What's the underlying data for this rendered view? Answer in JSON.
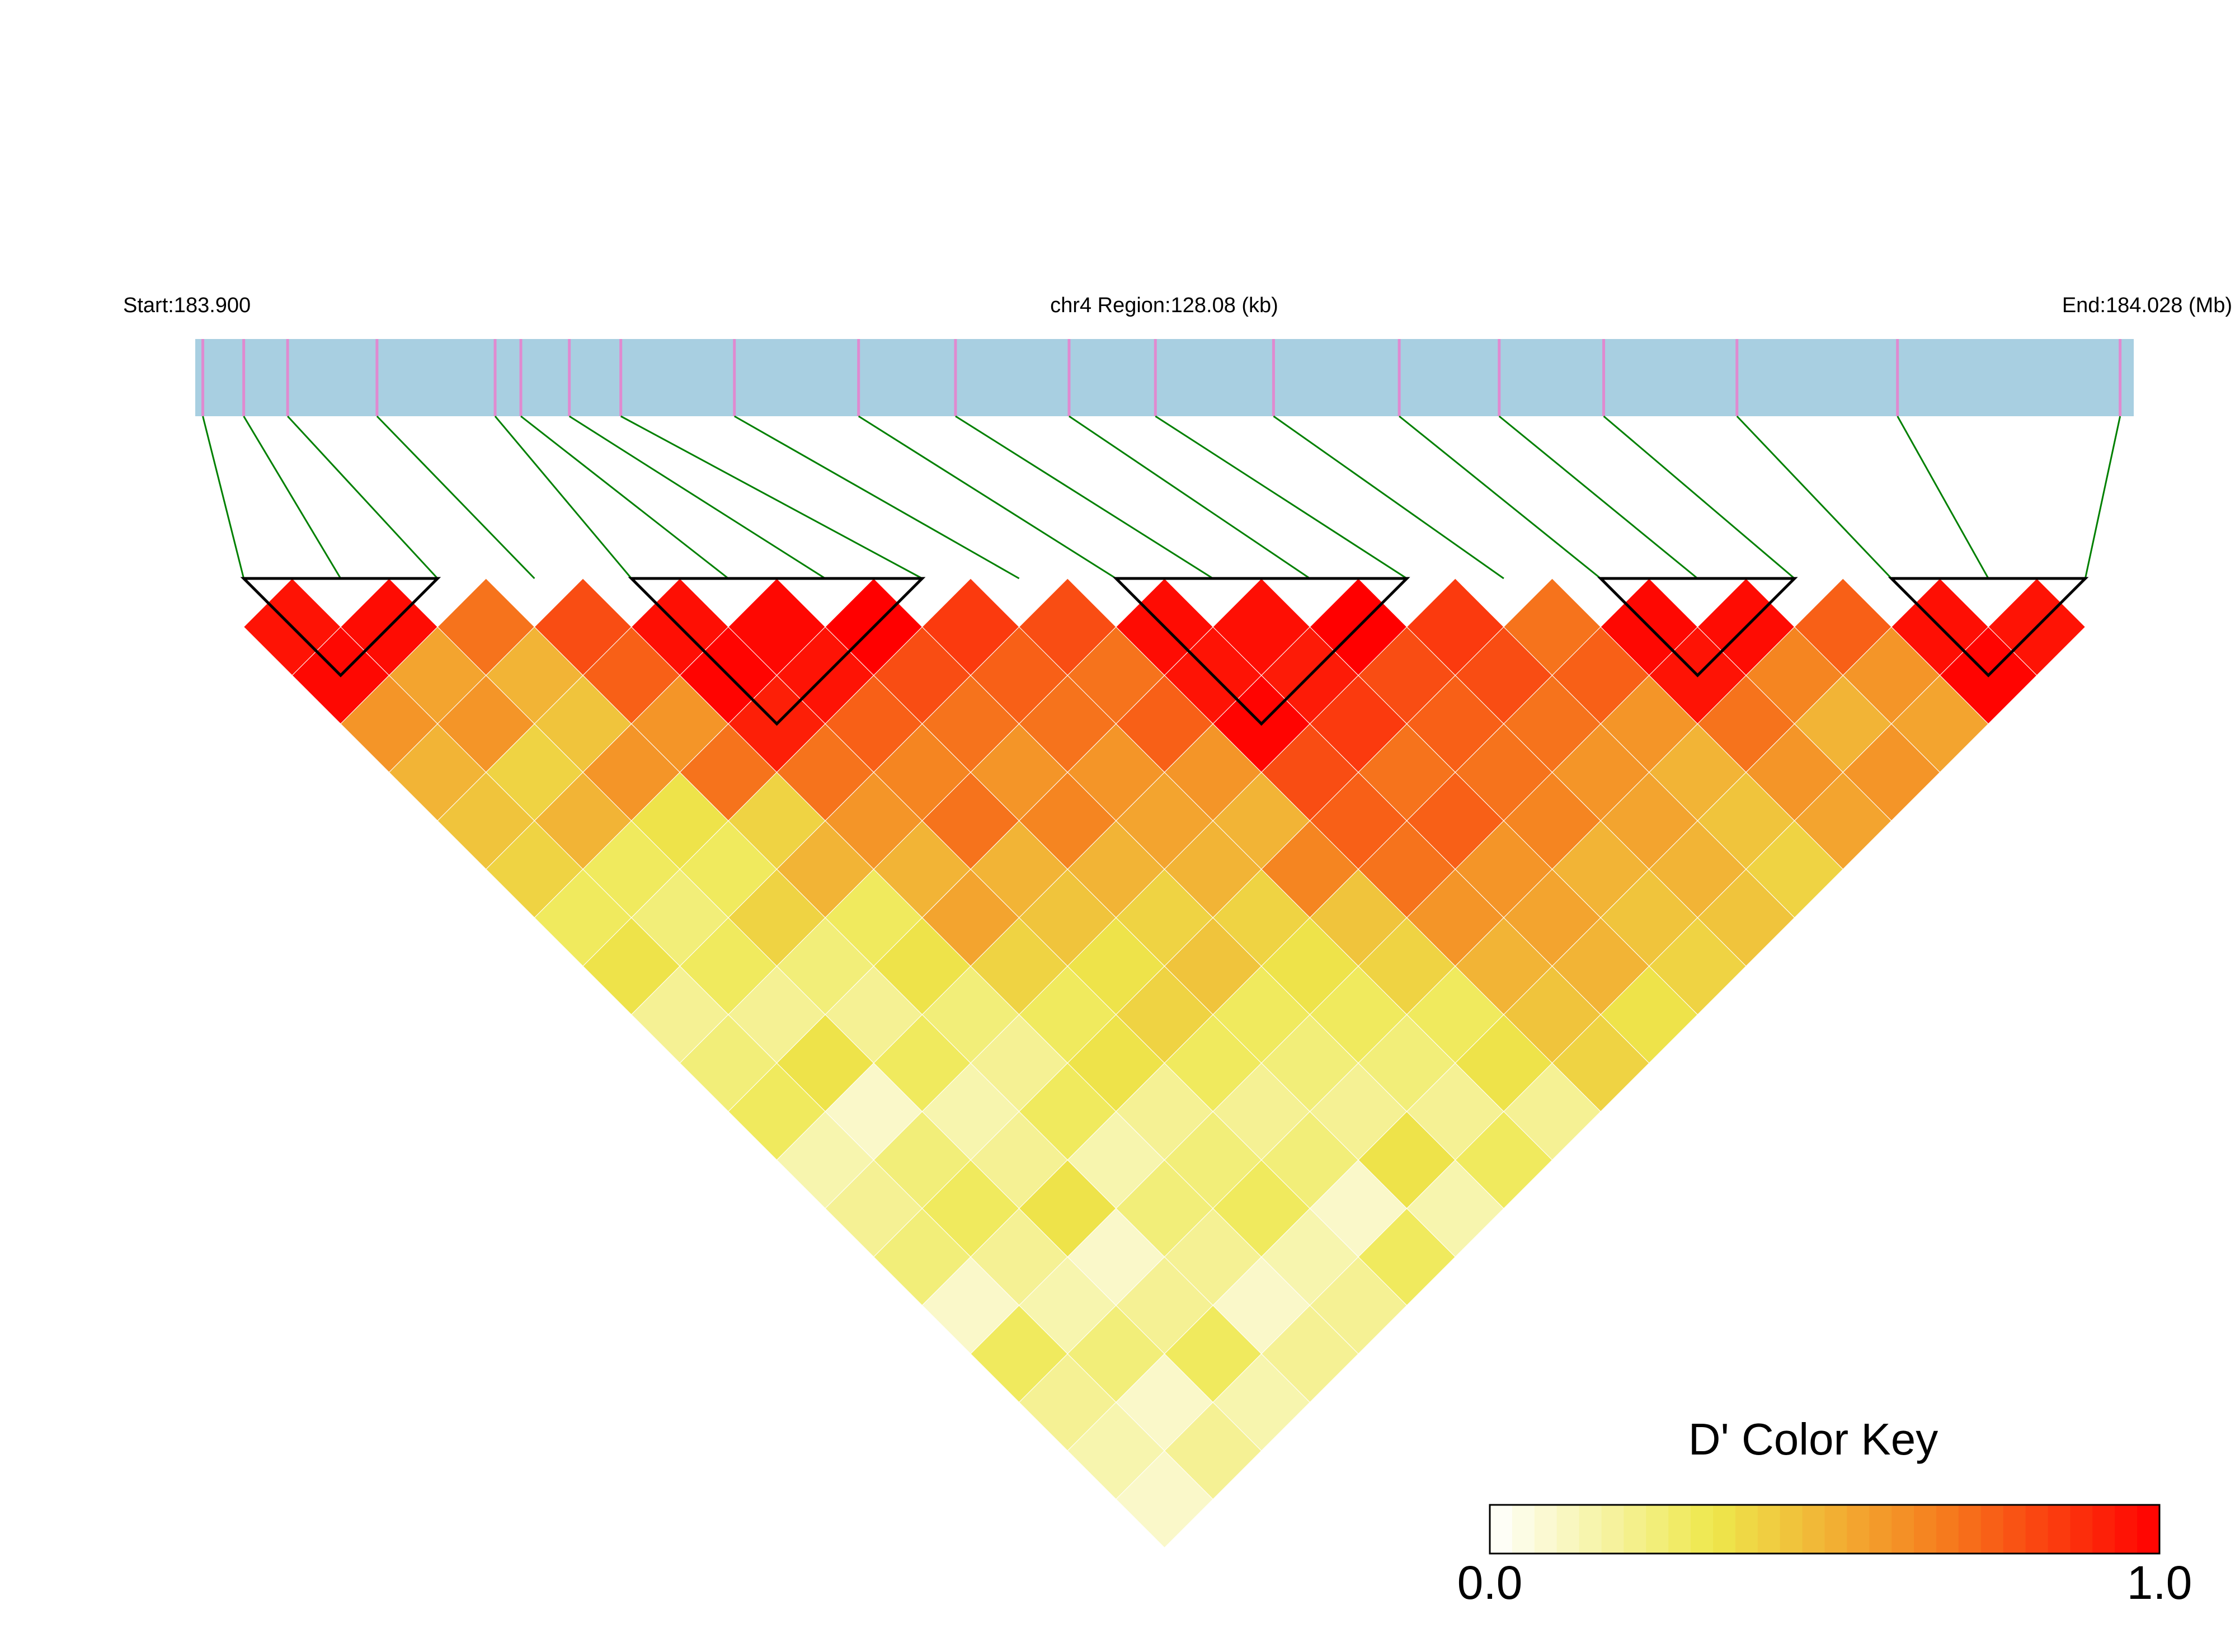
{
  "chart_data": {
    "type": "ld_heatmap",
    "start_label": "Start:183.900",
    "title": "chr4 Region:128.08 (kb)",
    "end_label": "End:184.028 (Mb)",
    "xlim": [
      183.9,
      184.028
    ],
    "positions": [
      183.9005,
      183.9032,
      183.9061,
      183.912,
      183.9198,
      183.9215,
      183.9247,
      183.9281,
      183.9356,
      183.9438,
      183.9502,
      183.9577,
      183.9634,
      183.9712,
      183.9795,
      183.9861,
      183.993,
      184.0018,
      184.0124,
      184.0271
    ],
    "dprime": [
      [
        0.95,
        0.98,
        0.6,
        0.5,
        0.45,
        0.4,
        0.3,
        0.35,
        0.2,
        0.25,
        0.3,
        0.15,
        0.2,
        0.25,
        0.1,
        0.3,
        0.2,
        0.15,
        0.1
      ],
      [
        0.97,
        0.55,
        0.6,
        0.4,
        0.5,
        0.3,
        0.25,
        0.3,
        0.2,
        0.35,
        0.1,
        0.25,
        0.3,
        0.2,
        0.15,
        0.25,
        0.1,
        0.2
      ],
      [
        0.7,
        0.5,
        0.45,
        0.6,
        0.35,
        0.3,
        0.4,
        0.25,
        0.2,
        0.3,
        0.15,
        0.2,
        0.35,
        0.1,
        0.2,
        0.3,
        0.15
      ],
      [
        0.8,
        0.75,
        0.6,
        0.7,
        0.4,
        0.5,
        0.3,
        0.35,
        0.25,
        0.2,
        0.3,
        0.15,
        0.25,
        0.2,
        0.1,
        0.2
      ],
      [
        0.96,
        0.99,
        0.92,
        0.7,
        0.6,
        0.5,
        0.55,
        0.4,
        0.3,
        0.35,
        0.2,
        0.25,
        0.3,
        0.15,
        0.2
      ],
      [
        0.98,
        0.95,
        0.75,
        0.65,
        0.7,
        0.5,
        0.45,
        0.35,
        0.4,
        0.3,
        0.2,
        0.25,
        0.1,
        0.3
      ],
      [
        1.0,
        0.8,
        0.7,
        0.6,
        0.65,
        0.5,
        0.4,
        0.45,
        0.3,
        0.25,
        0.2,
        0.35,
        0.15
      ],
      [
        0.85,
        0.75,
        0.7,
        0.6,
        0.55,
        0.5,
        0.4,
        0.35,
        0.3,
        0.25,
        0.2,
        0.3
      ],
      [
        0.8,
        0.7,
        0.75,
        0.6,
        0.5,
        0.65,
        0.45,
        0.4,
        0.3,
        0.35,
        0.2
      ],
      [
        0.97,
        0.95,
        0.99,
        0.8,
        0.75,
        0.7,
        0.6,
        0.5,
        0.45,
        0.4
      ],
      [
        0.96,
        0.93,
        0.85,
        0.7,
        0.75,
        0.6,
        0.55,
        0.5,
        0.35
      ],
      [
        1.0,
        0.8,
        0.75,
        0.7,
        0.65,
        0.5,
        0.45,
        0.4
      ],
      [
        0.85,
        0.8,
        0.7,
        0.6,
        0.55,
        0.5,
        0.45
      ],
      [
        0.7,
        0.75,
        0.6,
        0.5,
        0.45,
        0.4
      ],
      [
        0.98,
        0.95,
        0.7,
        0.6,
        0.55
      ],
      [
        0.97,
        0.65,
        0.5,
        0.6
      ],
      [
        0.75,
        0.6,
        0.55
      ],
      [
        0.96,
        0.99
      ],
      [
        0.95
      ]
    ],
    "blocks": [
      [
        0,
        2
      ],
      [
        4,
        7
      ],
      [
        9,
        12
      ],
      [
        14,
        16
      ],
      [
        17,
        19
      ]
    ],
    "bar_color": "#a8cfe1",
    "snp_color": "#e08ad0",
    "link_color": "#008000",
    "block_color": "#000000",
    "colors": [
      "#ffffff",
      "#eee84c",
      "#f5801f",
      "#ff0000"
    ],
    "key_title": "D' Color Key",
    "key_lim": [
      0,
      1
    ],
    "key_ticks": [
      {
        "value": 0,
        "label": "0.0"
      },
      {
        "value": 1,
        "label": "1.0"
      }
    ]
  }
}
